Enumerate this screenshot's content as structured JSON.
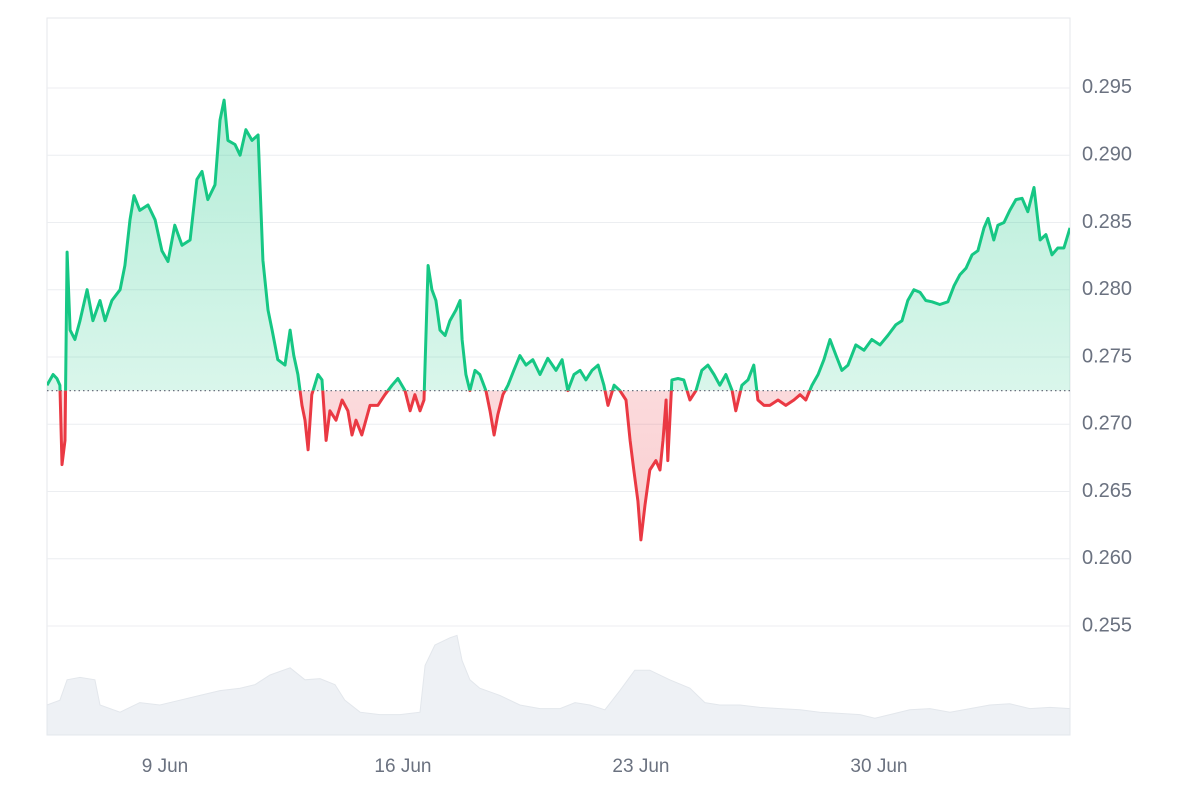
{
  "chart_data": {
    "type": "line",
    "x": [
      5.53,
      5.71,
      5.82,
      5.91,
      5.97,
      6.06,
      6.12,
      6.21,
      6.35,
      6.5,
      6.71,
      6.88,
      7.09,
      7.24,
      7.44,
      7.68,
      7.82,
      7.97,
      8.09,
      8.26,
      8.5,
      8.71,
      8.91,
      9.09,
      9.29,
      9.5,
      9.74,
      9.94,
      10.09,
      10.26,
      10.47,
      10.62,
      10.74,
      10.85,
      11.06,
      11.21,
      11.38,
      11.56,
      11.74,
      11.88,
      12.03,
      12.15,
      12.32,
      12.53,
      12.68,
      12.79,
      12.91,
      13.03,
      13.12,
      13.21,
      13.32,
      13.5,
      13.62,
      13.74,
      13.85,
      14.03,
      14.21,
      14.38,
      14.5,
      14.62,
      14.79,
      15.03,
      15.26,
      15.47,
      15.68,
      15.85,
      16.06,
      16.21,
      16.35,
      16.5,
      16.62,
      16.74,
      16.85,
      16.97,
      17.09,
      17.24,
      17.38,
      17.56,
      17.68,
      17.74,
      17.85,
      17.97,
      18.12,
      18.26,
      18.44,
      18.56,
      18.68,
      18.79,
      18.94,
      19.09,
      19.26,
      19.44,
      19.62,
      19.82,
      20.03,
      20.26,
      20.5,
      20.68,
      20.85,
      21.03,
      21.21,
      21.38,
      21.56,
      21.74,
      21.91,
      22.03,
      22.21,
      22.38,
      22.56,
      22.68,
      22.79,
      22.91,
      23.0,
      23.12,
      23.26,
      23.44,
      23.56,
      23.65,
      23.74,
      23.79,
      23.91,
      24.09,
      24.26,
      24.44,
      24.62,
      24.79,
      24.97,
      25.15,
      25.32,
      25.5,
      25.68,
      25.79,
      25.97,
      26.15,
      26.32,
      26.44,
      26.62,
      26.79,
      27.03,
      27.26,
      27.5,
      27.68,
      27.85,
      28.03,
      28.21,
      28.38,
      28.56,
      28.74,
      28.91,
      29.09,
      29.32,
      29.56,
      29.79,
      30.03,
      30.26,
      30.5,
      30.68,
      30.85,
      31.03,
      31.21,
      31.38,
      31.56,
      31.79,
      32.03,
      32.21,
      32.38,
      32.56,
      32.74,
      32.91,
      33.09,
      33.21,
      33.38,
      33.5,
      33.68,
      33.85,
      34.03,
      34.21,
      34.38,
      34.56,
      34.74,
      34.91,
      35.09,
      35.26,
      35.44,
      35.62
    ],
    "series": [
      {
        "up_color": "#16c784",
        "down_color": "#ea3943",
        "values": [
          0.2729,
          0.2737,
          0.2734,
          0.2729,
          0.267,
          0.2688,
          0.2828,
          0.277,
          0.2763,
          0.2777,
          0.28,
          0.2777,
          0.2792,
          0.2777,
          0.2792,
          0.28,
          0.2818,
          0.2852,
          0.287,
          0.2859,
          0.2863,
          0.2852,
          0.2829,
          0.2821,
          0.2848,
          0.2833,
          0.2837,
          0.2882,
          0.2888,
          0.2867,
          0.2878,
          0.2926,
          0.2941,
          0.2911,
          0.2908,
          0.29,
          0.2919,
          0.2911,
          0.2915,
          0.2822,
          0.2785,
          0.277,
          0.2748,
          0.2744,
          0.277,
          0.2751,
          0.2737,
          0.2714,
          0.2703,
          0.2681,
          0.2722,
          0.2737,
          0.2733,
          0.2688,
          0.271,
          0.2703,
          0.2718,
          0.271,
          0.2692,
          0.2703,
          0.2692,
          0.2714,
          0.2714,
          0.2722,
          0.2729,
          0.2734,
          0.2725,
          0.271,
          0.2722,
          0.271,
          0.2718,
          0.2818,
          0.28,
          0.2792,
          0.277,
          0.2766,
          0.2777,
          0.2785,
          0.2792,
          0.2763,
          0.2737,
          0.2725,
          0.274,
          0.2737,
          0.2725,
          0.271,
          0.2692,
          0.2707,
          0.2722,
          0.2729,
          0.274,
          0.2751,
          0.2744,
          0.2748,
          0.2737,
          0.2749,
          0.274,
          0.2748,
          0.2725,
          0.2737,
          0.274,
          0.2733,
          0.274,
          0.2744,
          0.2729,
          0.2714,
          0.2729,
          0.2725,
          0.2718,
          0.2688,
          0.2666,
          0.2643,
          0.2614,
          0.264,
          0.2666,
          0.2673,
          0.2666,
          0.2688,
          0.2718,
          0.2673,
          0.2733,
          0.2734,
          0.2733,
          0.2718,
          0.2725,
          0.274,
          0.2744,
          0.2737,
          0.2729,
          0.2737,
          0.2725,
          0.271,
          0.2729,
          0.2733,
          0.2744,
          0.2718,
          0.2714,
          0.2714,
          0.2718,
          0.2714,
          0.2718,
          0.2722,
          0.2718,
          0.2729,
          0.2737,
          0.2748,
          0.2763,
          0.2751,
          0.274,
          0.2744,
          0.2759,
          0.2755,
          0.2763,
          0.2759,
          0.2766,
          0.2774,
          0.2777,
          0.2792,
          0.28,
          0.2798,
          0.2792,
          0.2791,
          0.2789,
          0.2791,
          0.2803,
          0.2811,
          0.2816,
          0.2826,
          0.2829,
          0.2846,
          0.2853,
          0.2837,
          0.2848,
          0.285,
          0.2859,
          0.2867,
          0.2868,
          0.2858,
          0.2876,
          0.2837,
          0.2841,
          0.2826,
          0.2831,
          0.2831,
          0.2846
        ]
      }
    ],
    "baseline": 0.2725,
    "xlim": [
      5.53,
      35.62
    ],
    "ylim": [
      0.2469,
      0.3002
    ],
    "yticks": [
      0.255,
      {
        "value": 0.26,
        "label": "0.260"
      },
      0.265,
      {
        "value": 0.27,
        "label": "0.270"
      },
      0.275,
      {
        "value": 0.28,
        "label": "0.280"
      },
      0.285,
      {
        "value": 0.29,
        "label": "0.290"
      },
      0.295
    ],
    "xticks": [
      {
        "value": 9,
        "label": "9 Jun"
      },
      {
        "value": 16,
        "label": "16 Jun"
      },
      {
        "value": 23,
        "label": "23 Jun"
      },
      {
        "value": 30,
        "label": "30 Jun"
      }
    ],
    "grid": true,
    "volume": {
      "color": "#eef1f5",
      "y2lim": [
        0,
        100
      ],
      "x": [
        5.53,
        5.91,
        6.12,
        6.5,
        6.94,
        7.09,
        7.68,
        8.26,
        8.85,
        9.44,
        10.03,
        10.62,
        11.21,
        11.65,
        12.09,
        12.68,
        13.12,
        13.56,
        14.0,
        14.29,
        14.74,
        15.32,
        15.91,
        16.5,
        16.65,
        16.94,
        17.38,
        17.59,
        17.74,
        17.97,
        18.26,
        18.85,
        19.44,
        20.03,
        20.62,
        21.06,
        21.5,
        21.94,
        22.38,
        22.82,
        23.26,
        23.85,
        24.44,
        24.88,
        25.32,
        25.91,
        26.5,
        27.09,
        27.68,
        28.26,
        28.85,
        29.44,
        29.88,
        30.32,
        30.91,
        31.5,
        32.09,
        32.68,
        33.26,
        33.85,
        34.44,
        35.03,
        35.62
      ],
      "values": [
        25,
        29,
        46,
        48,
        46,
        25,
        19,
        27,
        25,
        29,
        33,
        37,
        39,
        42,
        50,
        56,
        46,
        47,
        42,
        29,
        19,
        17,
        17,
        19,
        58,
        75,
        81,
        83,
        62,
        46,
        39,
        33,
        25,
        22,
        22,
        27,
        25,
        21,
        37,
        54,
        54,
        46,
        39,
        27,
        25,
        25,
        23,
        22,
        21,
        19,
        18,
        17,
        14,
        17,
        21,
        22,
        19,
        22,
        25,
        26,
        22,
        23,
        22
      ]
    }
  }
}
